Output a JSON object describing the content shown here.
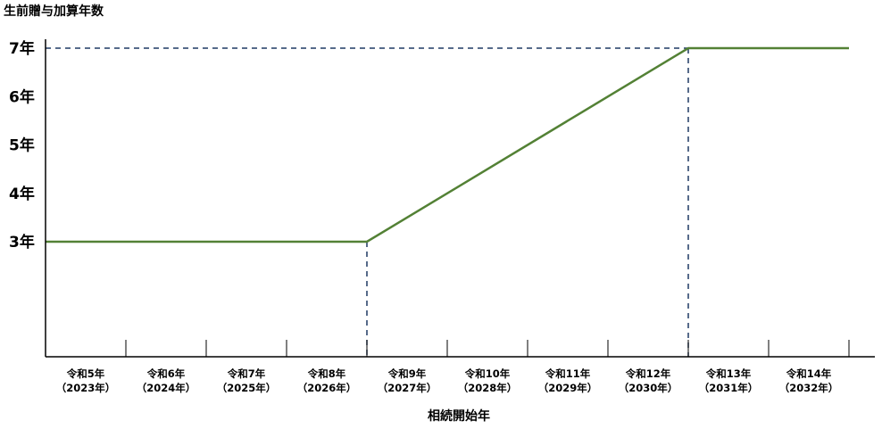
{
  "chart_data": {
    "type": "line",
    "title": "",
    "ylabel": "生前贈与加算年数",
    "xlabel": "相続開始年",
    "ylim": [
      2,
      7.8
    ],
    "y_ticks": [
      {
        "value": 3,
        "label": "3年"
      },
      {
        "value": 4,
        "label": "4年"
      },
      {
        "value": 5,
        "label": "5年"
      },
      {
        "value": 6,
        "label": "6年"
      },
      {
        "value": 7,
        "label": "7年"
      }
    ],
    "categories": [
      {
        "era": "令和5年",
        "year": "（2023年）"
      },
      {
        "era": "令和6年",
        "year": "（2024年）"
      },
      {
        "era": "令和7年",
        "year": "（2025年）"
      },
      {
        "era": "令和8年",
        "year": "（2026年）"
      },
      {
        "era": "令和9年",
        "year": "（2027年）"
      },
      {
        "era": "令和10年",
        "year": "（2028年）"
      },
      {
        "era": "令和11年",
        "year": "（2029年）"
      },
      {
        "era": "令和12年",
        "year": "（2030年）"
      },
      {
        "era": "令和13年",
        "year": "（2031年）"
      },
      {
        "era": "令和14年",
        "year": "（2032年）"
      }
    ],
    "series": [
      {
        "points": [
          {
            "x": 2023,
            "y": 3
          },
          {
            "x": 2027,
            "y": 3
          },
          {
            "x": 2031,
            "y": 7
          },
          {
            "x": 2033,
            "y": 7
          }
        ]
      }
    ],
    "reference_lines": [
      {
        "x": 2027,
        "y": 3
      },
      {
        "x": 2031,
        "y": 7
      }
    ],
    "grid": false,
    "colors": {
      "line": "#538135",
      "reference": "#1f3864",
      "axis": "#000000"
    }
  }
}
